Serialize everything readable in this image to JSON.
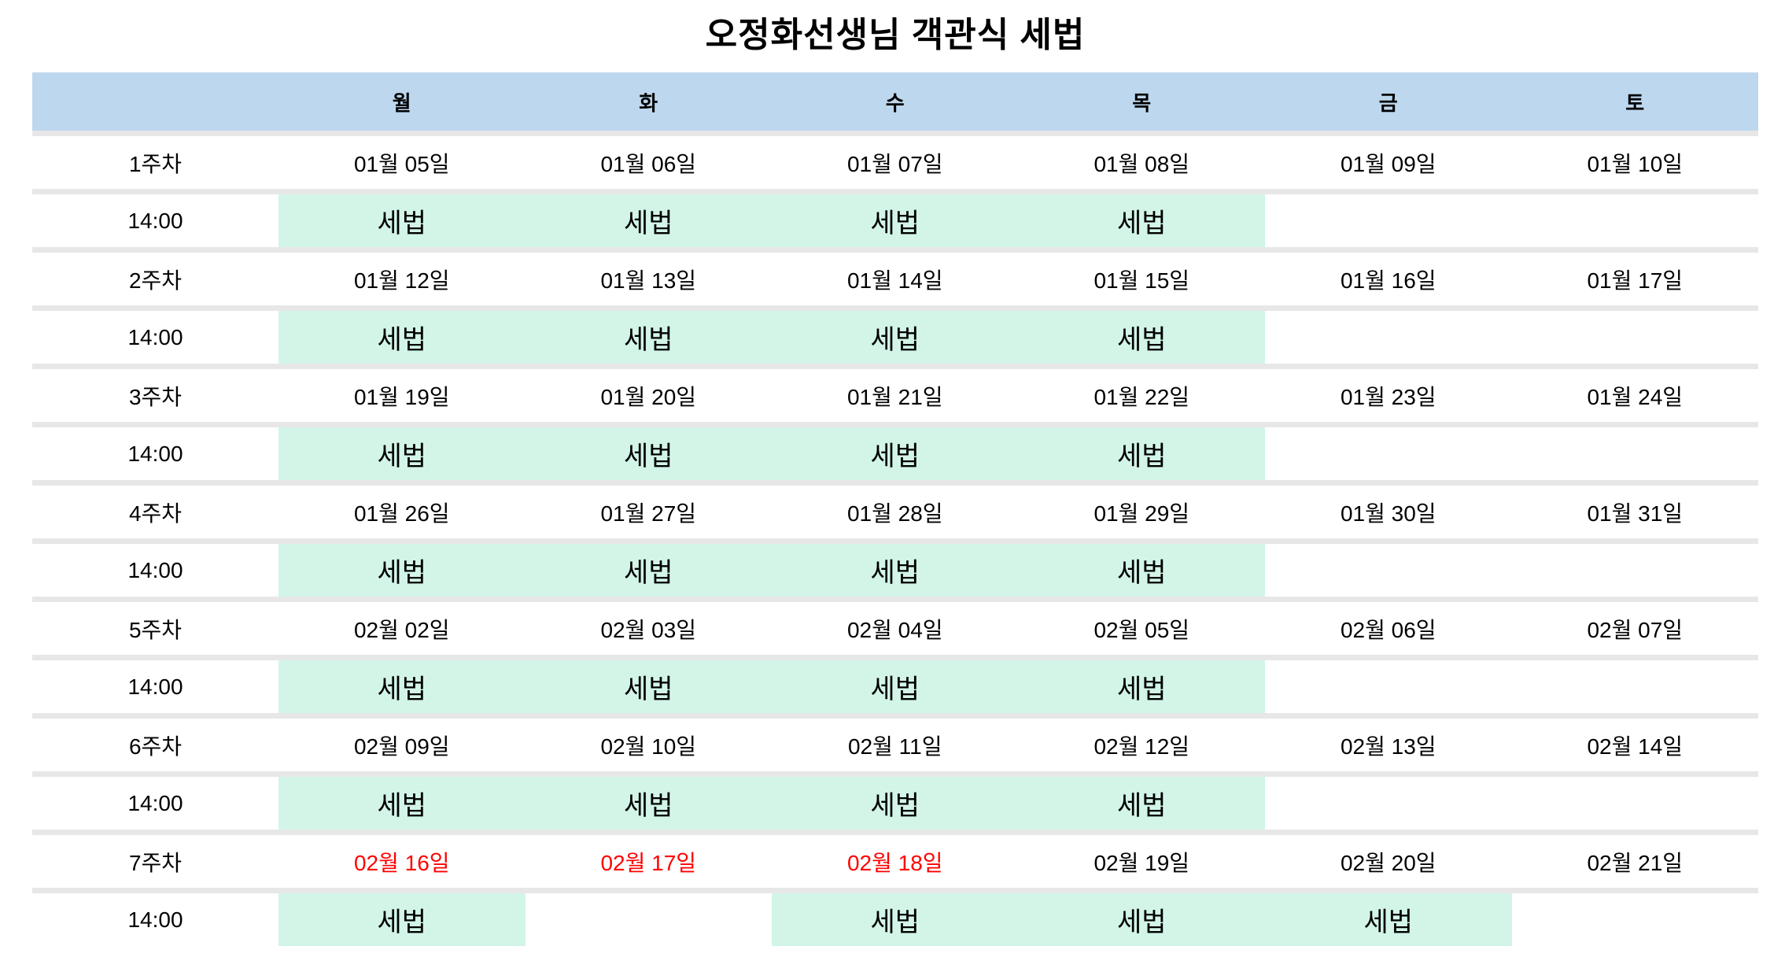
{
  "title": "오정화선생님 객관식 세법",
  "colors": {
    "header_bg": "#bdd7ee",
    "class_block_bg": "#d2f5e8",
    "divider": "#e8e7e7",
    "holiday_date_text": "#ff0000",
    "default_text": "#000000"
  },
  "header": {
    "corner": "",
    "days": [
      "월",
      "화",
      "수",
      "목",
      "금",
      "토"
    ]
  },
  "weeks": [
    {
      "label": "1주차",
      "time": "14:00",
      "dates": [
        "01월 05일",
        "01월 06일",
        "01월 07일",
        "01월 08일",
        "01월 09일",
        "01월 10일"
      ],
      "classes": [
        "세법",
        "세법",
        "세법",
        "세법",
        "",
        ""
      ]
    },
    {
      "label": "2주차",
      "time": "14:00",
      "dates": [
        "01월 12일",
        "01월 13일",
        "01월 14일",
        "01월 15일",
        "01월 16일",
        "01월 17일"
      ],
      "classes": [
        "세법",
        "세법",
        "세법",
        "세법",
        "",
        ""
      ]
    },
    {
      "label": "3주차",
      "time": "14:00",
      "dates": [
        "01월 19일",
        "01월 20일",
        "01월 21일",
        "01월 22일",
        "01월 23일",
        "01월 24일"
      ],
      "classes": [
        "세법",
        "세법",
        "세법",
        "세법",
        "",
        ""
      ]
    },
    {
      "label": "4주차",
      "time": "14:00",
      "dates": [
        "01월 26일",
        "01월 27일",
        "01월 28일",
        "01월 29일",
        "01월 30일",
        "01월 31일"
      ],
      "classes": [
        "세법",
        "세법",
        "세법",
        "세법",
        "",
        ""
      ]
    },
    {
      "label": "5주차",
      "time": "14:00",
      "dates": [
        "02월 02일",
        "02월 03일",
        "02월 04일",
        "02월 05일",
        "02월 06일",
        "02월 07일"
      ],
      "classes": [
        "세법",
        "세법",
        "세법",
        "세법",
        "",
        ""
      ]
    },
    {
      "label": "6주차",
      "time": "14:00",
      "dates": [
        "02월 09일",
        "02월 10일",
        "02월 11일",
        "02월 12일",
        "02월 13일",
        "02월 14일"
      ],
      "classes": [
        "세법",
        "세법",
        "세법",
        "세법",
        "",
        ""
      ]
    },
    {
      "label": "7주차",
      "time": "14:00",
      "dates": [
        "02월 16일",
        "02월 17일",
        "02월 18일",
        "02월 19일",
        "02월 20일",
        "02월 21일"
      ],
      "red_indices": [
        0,
        1,
        2
      ],
      "classes": [
        "세법",
        "",
        "세법",
        "세법",
        "세법",
        ""
      ]
    }
  ]
}
